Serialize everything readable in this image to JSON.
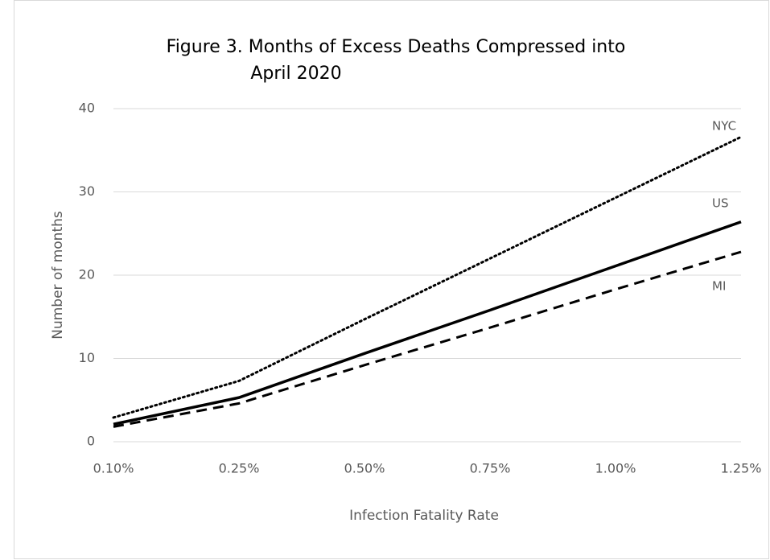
{
  "chart_data": {
    "type": "line",
    "title": [
      "Figure 3.  Months of Excess Deaths Compressed into",
      "April 2020"
    ],
    "x_label": "Infection Fatality Rate",
    "y_label": "Number of months",
    "categories": [
      "0.10%",
      "0.25%",
      "0.50%",
      "0.75%",
      "1.00%",
      "1.25%"
    ],
    "series": [
      {
        "name": "NYC",
        "color": "#000000",
        "style": "dotted",
        "values": [
          2.9,
          7.3,
          14.7,
          22.0,
          29.3,
          36.6
        ]
      },
      {
        "name": "US",
        "color": "#000000",
        "style": "solid",
        "values": [
          2.1,
          5.3,
          10.6,
          15.8,
          21.1,
          26.4
        ]
      },
      {
        "name": "MI",
        "color": "#000000",
        "style": "dashed",
        "values": [
          1.8,
          4.6,
          9.2,
          13.7,
          18.3,
          22.8
        ]
      }
    ],
    "ylim": [
      0,
      40
    ],
    "yticks": [
      0,
      10,
      20,
      30,
      40
    ],
    "grid": true
  }
}
